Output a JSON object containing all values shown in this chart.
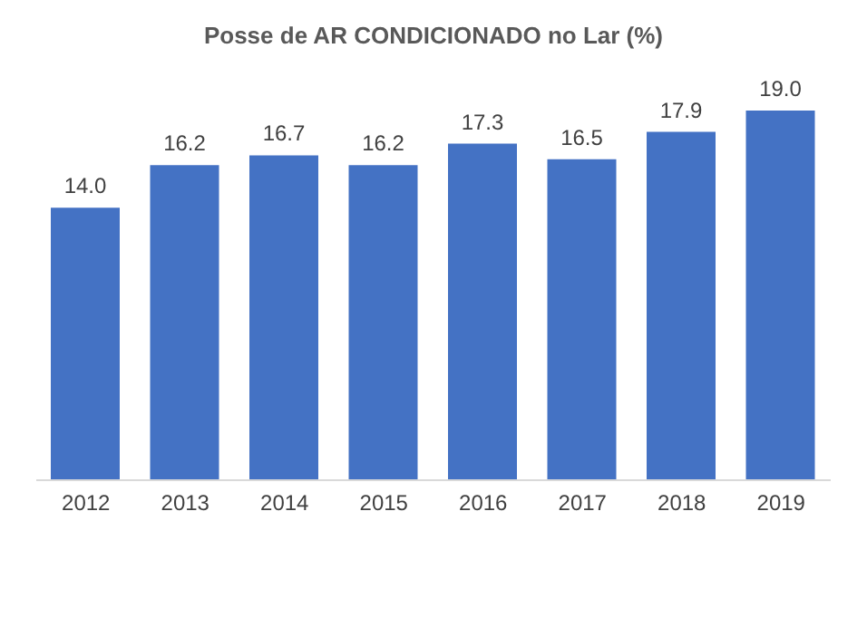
{
  "chart_data": {
    "type": "bar",
    "title": "Posse de AR CONDICIONADO no Lar (%)",
    "categories": [
      "2012",
      "2013",
      "2014",
      "2015",
      "2016",
      "2017",
      "2018",
      "2019"
    ],
    "values": [
      14.0,
      16.2,
      16.7,
      16.2,
      17.3,
      16.5,
      17.9,
      19.0
    ],
    "value_labels": [
      "14.0",
      "16.2",
      "16.7",
      "16.2",
      "17.3",
      "16.5",
      "17.9",
      "19.0"
    ],
    "color": "#4472c4"
  }
}
